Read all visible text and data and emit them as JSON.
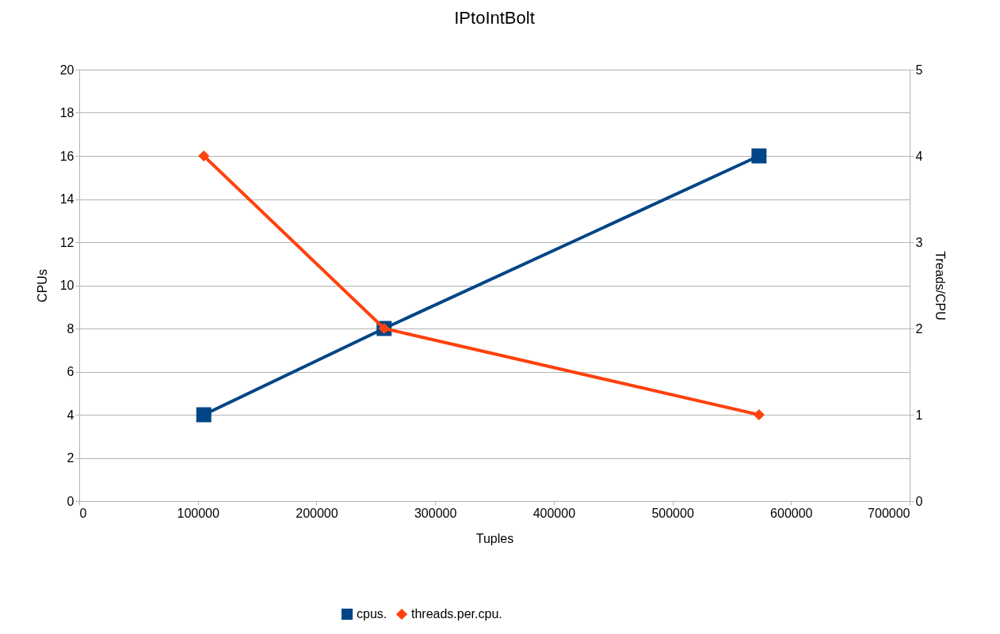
{
  "chart_data": {
    "type": "line",
    "title": "IPtoIntBolt",
    "xlabel": "Tuples",
    "ylabel": "CPUs",
    "y2label": "Treads/CPU",
    "x": [
      105000,
      257000,
      573000
    ],
    "series": [
      {
        "name": "cpus.",
        "color": "#004586",
        "values": [
          4,
          8,
          16
        ],
        "marker": "square"
      },
      {
        "name": "threads.per.cpu.",
        "color": "#ff420e",
        "values": [
          4,
          2,
          1
        ],
        "axis": "y2",
        "marker": "diamond"
      }
    ],
    "xlim": [
      0,
      700000
    ],
    "xticks": [
      0,
      100000,
      200000,
      300000,
      400000,
      500000,
      600000,
      700000
    ],
    "ylim": [
      0,
      20
    ],
    "yticks": [
      0,
      2,
      4,
      6,
      8,
      10,
      12,
      14,
      16,
      18,
      20
    ],
    "y2lim": [
      0,
      5
    ],
    "y2ticks": [
      0,
      1,
      2,
      3,
      4,
      5
    ],
    "grid": "y",
    "legend": "bottom",
    "line_style": "solid"
  }
}
